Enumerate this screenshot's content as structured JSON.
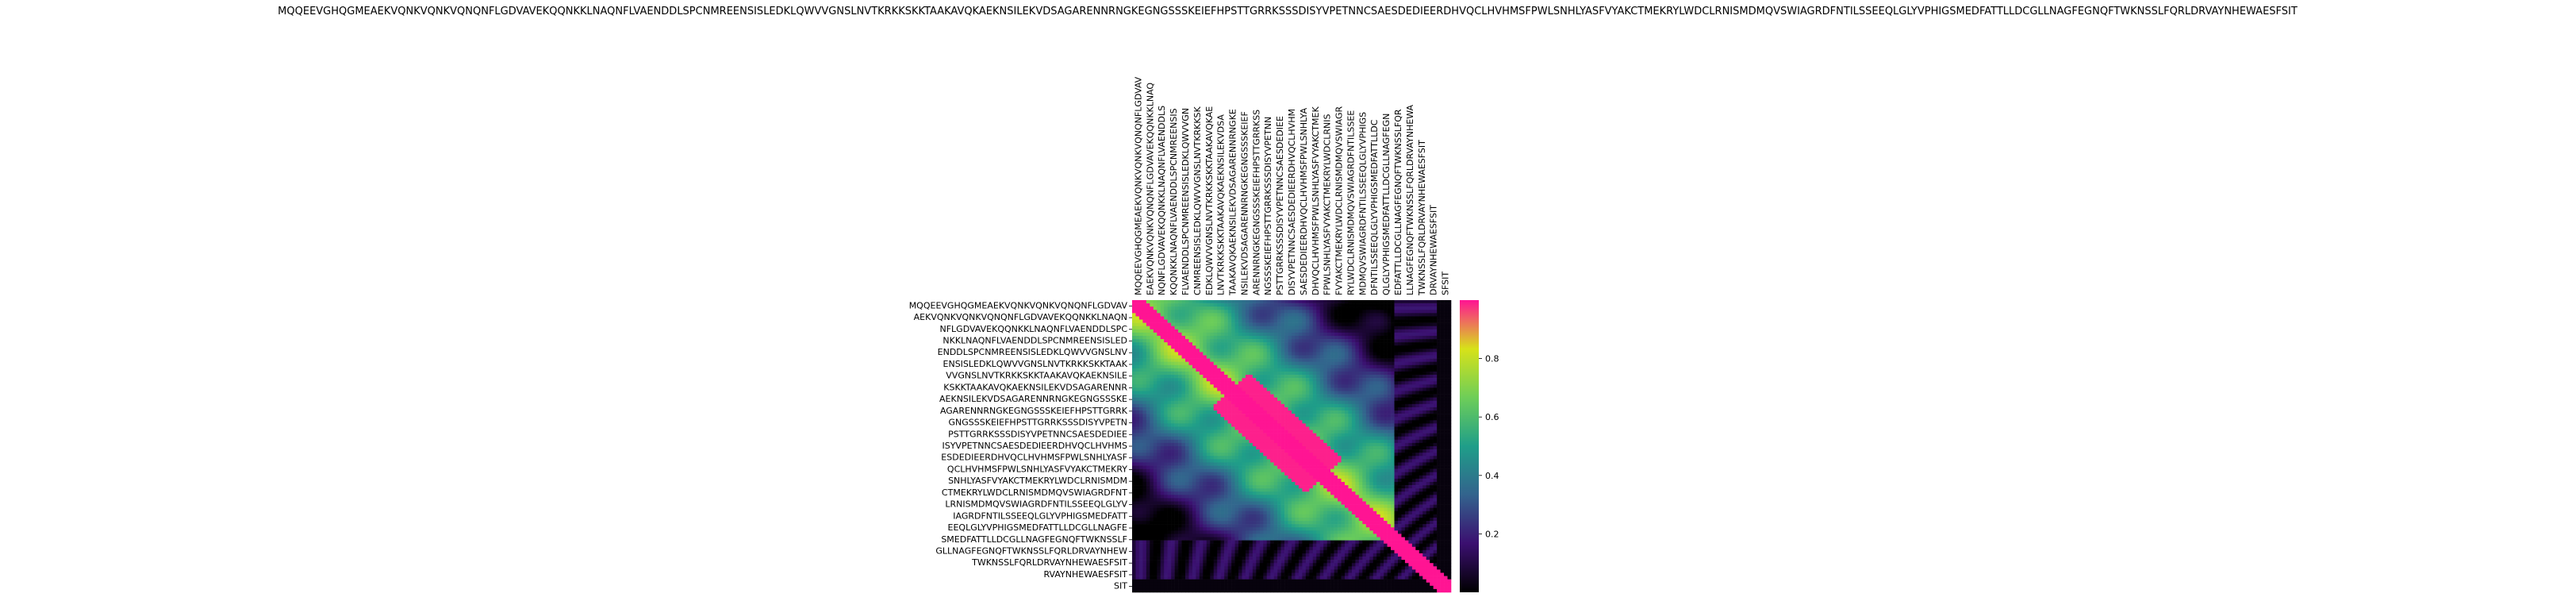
{
  "chart_data": {
    "type": "heatmap",
    "title": "MQQEEVGHQGMEAEKVQNKVQNKVQNQNFLGDVAVEKQQNKKLNAQNFLVAENDDLSPCNMREENSISLEDKLQWVVGNSLNVTKRKKSKKTAAKAVQKAEKNSILEKVDSAGARENNRNGKEGNGSSSKEIEFHPSTTGRRKSSSDISYVPETNNCSAESDEDIEERDHVQCLHVHMSFPWLSNHLYASFVYAKCTMEKRYLWDCLRNISMDMQVSWIAGRDFNTILSSEEQLGLYVPHIGSMEDFATTLLDCGLLNAGFEGNQFTWKNSSLFQRLDRVAYNHEWAESFSIT",
    "xlabel": "",
    "ylabel": "",
    "color_scale": {
      "min": 0.0,
      "max": 1.0,
      "ticks": [
        "0.2",
        "0.4",
        "0.6",
        "0.8"
      ],
      "colors": [
        "#000000",
        "#3b0f70",
        "#33638d",
        "#1f9e89",
        "#6ece58",
        "#d7e219",
        "#ff1493"
      ]
    },
    "y_labels": [
      "MQQEEVGHQGMEAEKVQNKVQNKVQNQNFLGDVAV",
      "AEKVQNKVQNKVQNQNFLGDVAVEKQQNKKLNAQN",
      "NFLGDVAVEKQQNKKLNAQNFLVAENDDLSPC",
      "NKKLNAQNFLVAENDDLSPCNMREENSISLED",
      "ENDDLSPCNMREENSISLEDKLQWVVGNSLNV",
      "ENSISLEDKLQWVVGNSLNVTKRKKSKKTAAK",
      "VVGNSLNVTKRKKSKKTAAKAVQKAEKNSILE",
      "KSKKTAAKAVQKAEKNSILEKVDSAGARENNR",
      "AEKNSILEKVDSAGARENNRNGKEGNGSSSKE",
      "AGARENNRNGKEGNGSSSKEIEFHPSTTGRRK",
      "GNGSSSKEIEFHPSTTGRRKSSSDISYVPETN",
      "PSTTGRRKSSSDISYVPETNNCSAESDEDIEE",
      "ISYVPETNNCSAESDEDIEERDHVQCLHVHMS",
      "ESDEDIEERDHVQCLHVHMSFPWLSNHLYASF",
      "QCLHVHMSFPWLSNHLYASFVYAKCTMEKRY",
      "SNHLYASFVYAKCTMEKRYLWDCLRNISMDM",
      "CTMEKRYLWDCLRNISMDMQVSWIAGRDFNT",
      "LRNISMDMQVSWIAGRDFNTILSSEEQLGLYV",
      "IAGRDFNTILSSEEQLGLYVPHIGSMEDFATT",
      "EEQLGLYVPHIGSMEDFATTLLDCGLLNAGFE",
      "SMEDFATTLLDCGLLNAGFEGNQFTWKNSSLF",
      "GLLNAGFEGNQFTWKNSSLFQRLDRVAYNHEW",
      "TWKNSSLFQRLDRVAYNHEWAESFSIT",
      "RVAYNHEWAESFSIT",
      "SIT"
    ],
    "x_labels": [
      "MQQEEVGHQGMEAEKVQNKVQNKVQNQNFLGDVAV",
      "EAEKVQNKVQNKVQNQNFLGDVAVEKQQNKKLNAQ",
      "NQNFLGDVAVEKQQNKKLNAQNFLVAENDDLS",
      "KQQNKKLNAQNFLVAENDDLSPCNMREENSIS",
      "FLVAENDDLSPCNMREENSISLEDKLQWVVGN",
      "CNMREENSISLEDKLQWVVGNSLNVTKRKKSK",
      "EDKLQWVVGNSLNVTKRKKSKKTAAKAVQKAE",
      "LNVTKRKKSKKTAAKAVQKAEKNSILEKVDSA",
      "TAAKAVQKAEKNSILEKVDSAGARENNRNGKE",
      "NSILEKVDSAGARENNRNGKEGNGSSSKEIEF",
      "ARENNRNGKEGNGSSSKEIEFHPSTTGRRKSS",
      "NGSSSKEIEFHPSTTGRRKSSSDISYVPETNN",
      "PSTTGRRKSSSDISYVPETNNCSAESDEDIEE",
      "DISYVPETNNCSAESDEDIEERDHVQCLHVHM",
      "SAESDEDIEERDHVQCLHVHMSFPWLSNHLYA",
      "DHVQCLHVHMSFPWLSNHLYASFVYAKCTMEK",
      "FPWLSNHLYASFVYAKCTMEKRYLWDCLRNIS",
      "FVYAKCTMEKRYLWDCLRNISMDMQVSWIAGR",
      "RYLWDCLRNISMDMQVSWIAGRDFNTILSSEE",
      "MDMQVSWIAGRDFNTILSSEEQLGLYVPHIGS",
      "DFNTILSSEEQLGLYVPHIGSMEDFATTLLDC",
      "QLGLYVPHIGSMEDFATTLLDCGLLNAGFEGN",
      "EDFATTLLDCGLLNAGFEGNQFTWKNSSLFQR",
      "LLNAGFEGNQFTWKNSSLFQRLDRVAYNHEWA",
      "TWKNSSLFQRLDRVAYNHEWAESFSIT",
      "DRVAYNHEWAESFSIT",
      "SFSIT"
    ],
    "legend": "colorbar-right"
  }
}
